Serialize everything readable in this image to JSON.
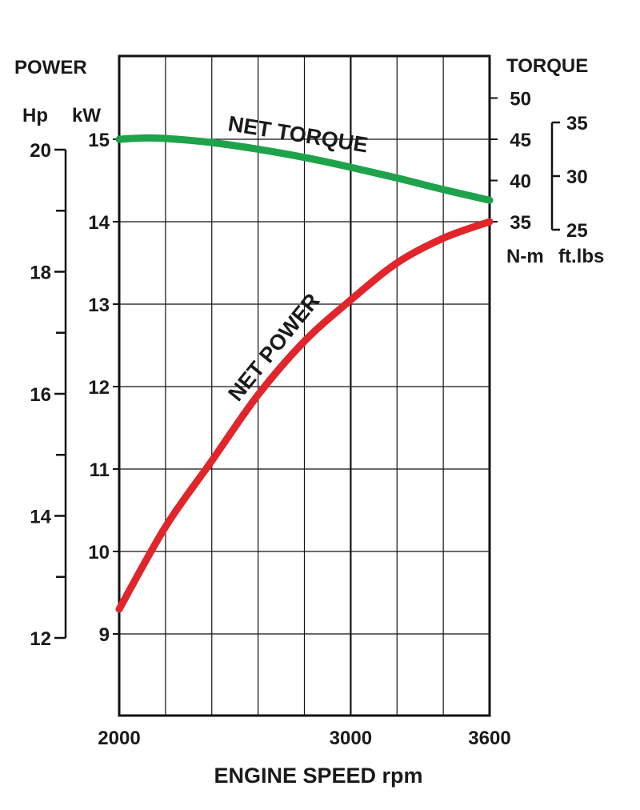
{
  "chart_data": {
    "type": "line",
    "xlabel": "ENGINE SPEED rpm",
    "xlim": [
      2000,
      3600
    ],
    "x_ticks": [
      {
        "value": 2000,
        "label": "2000"
      },
      {
        "value": 3000,
        "label": "3000"
      },
      {
        "value": 3600,
        "label": "3600"
      }
    ],
    "x_gridlines": [
      2000,
      2200,
      2400,
      2600,
      2800,
      3000,
      3200,
      3400,
      3600
    ],
    "power_axis": {
      "title": "POWER",
      "kw_unit": "kW",
      "hp_unit": "Hp",
      "kw_range": [
        8,
        16.2
      ],
      "kw_ticks": [
        {
          "value": 9,
          "label": "9"
        },
        {
          "value": 10,
          "label": "10"
        },
        {
          "value": 11,
          "label": "11"
        },
        {
          "value": 12,
          "label": "12"
        },
        {
          "value": 13,
          "label": "13"
        },
        {
          "value": 14,
          "label": "14"
        },
        {
          "value": 15,
          "label": "15"
        }
      ],
      "hp_ticks": [
        {
          "value": 12,
          "label": "12"
        },
        {
          "value": 14,
          "label": "14"
        },
        {
          "value": 16,
          "label": "16"
        },
        {
          "value": 18,
          "label": "18"
        },
        {
          "value": 20,
          "label": "20"
        }
      ],
      "hp_minor_ticks": [
        13,
        15,
        17,
        19
      ]
    },
    "torque_axis": {
      "title": "TORQUE",
      "nm_unit": "N-m",
      "ftlb_unit": "ft.lbs",
      "nm_ticks": [
        {
          "value": 35,
          "label": "35"
        },
        {
          "value": 40,
          "label": "40"
        },
        {
          "value": 45,
          "label": "45"
        },
        {
          "value": 50,
          "label": "50"
        }
      ],
      "ftlb_ticks": [
        {
          "value": 25,
          "label": "25"
        },
        {
          "value": 30,
          "label": "30"
        },
        {
          "value": 35,
          "label": "35"
        }
      ]
    },
    "series": [
      {
        "name": "NET TORQUE",
        "axis": "torque_nm",
        "color": "#1ea34b",
        "x": [
          2000,
          2100,
          2200,
          2400,
          2600,
          2800,
          3000,
          3200,
          3400,
          3600
        ],
        "y": [
          45.0,
          45.15,
          45.1,
          44.6,
          43.8,
          42.8,
          41.6,
          40.3,
          38.9,
          37.6
        ]
      },
      {
        "name": "NET POWER",
        "axis": "power_kw",
        "color": "#e0252b",
        "x": [
          2000,
          2200,
          2400,
          2600,
          2800,
          3000,
          3200,
          3400,
          3600
        ],
        "y": [
          9.3,
          10.3,
          11.1,
          11.9,
          12.55,
          13.05,
          13.5,
          13.8,
          14.0
        ]
      }
    ],
    "grid": true,
    "legend": "none"
  }
}
